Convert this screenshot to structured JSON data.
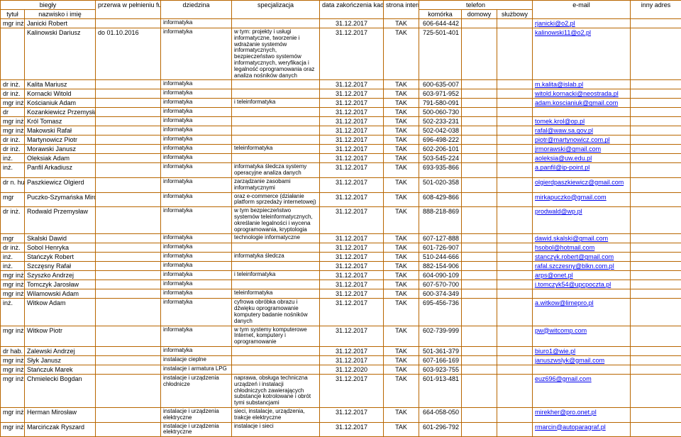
{
  "headers": {
    "biegly": "biegły",
    "przerwa": "przerwa w pełnieniu funkcji",
    "dziedzina": "dziedzina",
    "specjalizacja": "specjalizacja",
    "data": "data zakończenia kadencji",
    "strona": "strona internetowa",
    "telefon": "telefon",
    "email": "e-mail",
    "inny": "inny adres",
    "tytul": "tytuł",
    "nazwisko": "nazwisko i imię",
    "komorka": "komórka",
    "domowy": "domowy",
    "sluzbowy": "służbowy"
  },
  "rows": [
    {
      "t": "mgr inż.",
      "n": "Janicki Robert",
      "p": "",
      "d": "informatyka",
      "s": "",
      "dt": "31.12.2017",
      "si": "TAK",
      "k": "606-644-442",
      "dm": "",
      "sl": "",
      "e": "rjanicki@o2.pl",
      "i": ""
    },
    {
      "t": "",
      "n": "Kalinowski Dariusz",
      "p": "do 01.10.2016",
      "d": "informatyka",
      "s": "w tym: projekty i usługi informatyczne, tworzenie\ni wdrażanie systemów informatycznych, bezpieczeństwo systemów informatycznych, weryfikacja i legalność oprogramowania oraz analiza nośników danych",
      "dt": "31.12.2017",
      "si": "TAK",
      "k": "725-501-401",
      "dm": "",
      "sl": "",
      "e": "kalinowski11@o2.pl",
      "i": ""
    },
    {
      "t": "dr inż.",
      "n": "Kalita Mariusz",
      "p": "",
      "d": "informatyka",
      "s": "",
      "dt": "31.12.2017",
      "si": "TAK",
      "k": "600-635-007",
      "dm": "",
      "sl": "",
      "e": "m.kalita@islab.pl",
      "i": ""
    },
    {
      "t": "dr inż.",
      "n": "Kornacki Witold",
      "p": "",
      "d": "informatyka",
      "s": "",
      "dt": "31.12.2017",
      "si": "TAK",
      "k": "603-971-952",
      "dm": "",
      "sl": "",
      "e": "witold.kornacki@neostrada.pl",
      "i": ""
    },
    {
      "t": "mgr inż.",
      "n": "Kościaniuk Adam",
      "p": "",
      "d": "informatyka",
      "s": "i teleinformatyka",
      "dt": "31.12.2017",
      "si": "TAK",
      "k": "791-580-091",
      "dm": "",
      "sl": "",
      "e": "adam.koscianiuk@gmail.com",
      "i": ""
    },
    {
      "t": "dr",
      "n": "Kozankiewicz Przemysław",
      "p": "",
      "d": "informatyka",
      "s": "",
      "dt": "31.12.2017",
      "si": "TAK",
      "k": "500-060-730",
      "dm": "",
      "sl": "",
      "e": "",
      "i": ""
    },
    {
      "t": "mgr inż.",
      "n": "Król Tomasz",
      "p": "",
      "d": "informatyka",
      "s": "",
      "dt": "31.12.2017",
      "si": "TAK",
      "k": "502-233-231",
      "dm": "",
      "sl": "",
      "e": "tomek.krol@op.pl",
      "i": ""
    },
    {
      "t": "mgr inż.",
      "n": "Makowski Rafał",
      "p": "",
      "d": "informatyka",
      "s": "",
      "dt": "31.12.2017",
      "si": "TAK",
      "k": "502-042-038",
      "dm": "",
      "sl": "",
      "e": "rafal@waw.sa.gov.pl",
      "i": ""
    },
    {
      "t": "dr inż.",
      "n": "Martynowicz Piotr",
      "p": "",
      "d": "informatyka",
      "s": "",
      "dt": "31.12.2017",
      "si": "TAK",
      "k": "696-498-222",
      "dm": "",
      "sl": "",
      "e": "piotr@martynowicz.com.pl",
      "i": ""
    },
    {
      "t": "dr inż.",
      "n": "Morawski Janusz",
      "p": "",
      "d": "informatyka",
      "s": "teleinformatyka",
      "dt": "31.12.2017",
      "si": "TAK",
      "k": "602-206-101",
      "dm": "",
      "sl": "",
      "e": "jrmorawski@gmail.com",
      "i": ""
    },
    {
      "t": "inż.",
      "n": "Oleksiak Adam",
      "p": "",
      "d": "informatyka",
      "s": "",
      "dt": "31.12.2017",
      "si": "TAK",
      "k": "503-545-224",
      "dm": "",
      "sl": "",
      "e": "aoleksia@uw.edu.pl",
      "i": ""
    },
    {
      "t": "inż.",
      "n": "Panfil Arkadiusz",
      "p": "",
      "d": "informatyka",
      "s": "informatyka śledcza\nsystemy operacyjne\nanaliza danych",
      "dt": "31.12.2017",
      "si": "TAK",
      "k": "693-935-866",
      "dm": "",
      "sl": "",
      "e": "a.panfil@ip-point.pl",
      "i": ""
    },
    {
      "t": "dr n. hum.",
      "n": "Paszkiewicz Olgierd",
      "p": "",
      "d": "informatyka",
      "s": "zarządzanie zasobami informatycznymi",
      "dt": "31.12.2017",
      "si": "TAK",
      "k": "501-020-358",
      "dm": "",
      "sl": "",
      "e": "olgierdpaszkiewicz@gmail.com",
      "i": ""
    },
    {
      "t": "mgr",
      "n": "Puczko-Szymańska Mirosława",
      "p": "",
      "d": "informatyka",
      "s": "oraz e-commerce (działanie platform sprzedaży internetowej)",
      "dt": "31.12.2017",
      "si": "TAK",
      "k": "608-429-866",
      "dm": "",
      "sl": "",
      "e": "mirkapuczko@gmail.com",
      "i": ""
    },
    {
      "t": "dr inż.",
      "n": "Rodwald Przemysław",
      "p": "",
      "d": "informatyka",
      "s": "w tym bezpieczeństwo systemów teleinformatycznych, określanie legalności i wycena oprogramowania, kryptologia",
      "dt": "31.12.2017",
      "si": "TAK",
      "k": "888-218-869",
      "dm": "",
      "sl": "",
      "e": "prodwald@wp.pl",
      "i": ""
    },
    {
      "t": "mgr",
      "n": "Skalski Dawid",
      "p": "",
      "d": "informatyka",
      "s": "technologie informatyczne",
      "dt": "31.12.2017",
      "si": "TAK",
      "k": "607-127-888",
      "dm": "",
      "sl": "",
      "e": "dawid.skalski@gmail.com",
      "i": ""
    },
    {
      "t": "dr inż.",
      "n": "Sobol Henryka",
      "p": "",
      "d": "informatyka",
      "s": "",
      "dt": "31.12.2017",
      "si": "TAK",
      "k": "601-726-907",
      "dm": "",
      "sl": "",
      "e": "hsobol@hotmail.com",
      "i": ""
    },
    {
      "t": "inż.",
      "n": "Stańczyk Robert",
      "p": "",
      "d": "informatyka",
      "s": "informatyka śledcza",
      "dt": "31.12.2017",
      "si": "TAK",
      "k": "510-244-666",
      "dm": "",
      "sl": "",
      "e": "stanczyk.robert@gmail.com",
      "i": ""
    },
    {
      "t": "inż.",
      "n": "Szczęsny Rafał",
      "p": "",
      "d": "informatyka",
      "s": "",
      "dt": "31.12.2017",
      "si": "TAK",
      "k": "882-154-906",
      "dm": "",
      "sl": "",
      "e": "rafal.szczesny@blkn.com.pl",
      "i": ""
    },
    {
      "t": "mgr inż.",
      "n": "Szyszko Andrzej",
      "p": "",
      "d": "informatyka",
      "s": "i teleinformatyka",
      "dt": "31.12.2017",
      "si": "TAK",
      "k": "604-090-109",
      "dm": "",
      "sl": "",
      "e": "arps@onet.pl",
      "i": ""
    },
    {
      "t": "mgr inż.",
      "n": "Tomczyk Jarosław",
      "p": "",
      "d": "informatyka",
      "s": "",
      "dt": "31.12.2017",
      "si": "TAK",
      "k": "607-570-700",
      "dm": "",
      "sl": "",
      "e": "j.tomczyk54@upcpoczta.pl",
      "i": ""
    },
    {
      "t": "mgr inż.",
      "n": "Wilamowski Adam",
      "p": "",
      "d": "informatyka",
      "s": "teleinformatyka",
      "dt": "31.12.2017",
      "si": "TAK",
      "k": "600-374-349",
      "dm": "",
      "sl": "",
      "e": "",
      "i": ""
    },
    {
      "t": "inż.",
      "n": "Witkow Adam",
      "p": "",
      "d": "informatyka",
      "s": "cyfrowa obróbka obrazu i dźwięku\noprogramowanie\nkomputery\nbadanie nośników danych",
      "dt": "31.12.2017",
      "si": "TAK",
      "k": "695-456-736",
      "dm": "",
      "sl": "",
      "e": "a.witkow@limepro.pl",
      "i": ""
    },
    {
      "t": "mgr inż.",
      "n": "Witkow Piotr",
      "p": "",
      "d": "informatyka",
      "s": "w tym  systemy komputerowe Internet, komputery i oprogramowanie",
      "dt": "31.12.2017",
      "si": "TAK",
      "k": "602-739-999",
      "dm": "",
      "sl": "",
      "e": "pw@witcomp.com",
      "i": ""
    },
    {
      "t": "dr hab. inż.",
      "n": "Zalewski Andrzej",
      "p": "",
      "d": "informatyka",
      "s": "",
      "dt": "31.12.2017",
      "si": "TAK",
      "k": "501-361-379",
      "dm": "",
      "sl": "",
      "e": "biuro1@wie.pl",
      "i": ""
    },
    {
      "t": "mgr inż.",
      "n": "Słyk Janusz",
      "p": "",
      "d": "instalacje cieplne",
      "s": "",
      "dt": "31.12.2017",
      "si": "TAK",
      "k": "607-166-169",
      "dm": "",
      "sl": "",
      "e": "januszwslyk@gmail.com",
      "i": ""
    },
    {
      "t": "mgr inż.",
      "n": "Stańczuk Marek",
      "p": "",
      "d": "instalacje i armatura LPG",
      "s": "",
      "dt": "31.12.2020",
      "si": "TAK",
      "k": "603-923-755",
      "dm": "",
      "sl": "",
      "e": "",
      "i": ""
    },
    {
      "t": "mgr inż.",
      "n": "Chmielecki Bogdan",
      "p": "",
      "d": "instalacje i urządzenia chłodnicze",
      "s": "naprawa, obsługa techniczna urządzeń i instalacji chłodniczych zawierających substancje kotrolowane i obrót tymi substancjami",
      "dt": "31.12.2017",
      "si": "TAK",
      "k": "601-913-481",
      "dm": "",
      "sl": "",
      "e": "euz696@gmail.com",
      "i": ""
    },
    {
      "t": "mgr inż.",
      "n": "Herman Mirosław",
      "p": "",
      "d": "instalacje i urządzenia elektryczne",
      "s": "sieci, instalacje, urządzenia, trakcje elektryczne",
      "dt": "31.12.2017",
      "si": "TAK",
      "k": "664-058-050",
      "dm": "",
      "sl": "",
      "e": "mirekher@pro.onet.pl",
      "i": ""
    },
    {
      "t": "mgr inż.",
      "n": "Marcińczak Ryszard",
      "p": "",
      "d": "instalacje i urządzenia elektryczne",
      "s": "instalacje i sieci",
      "dt": "31.12.2017",
      "si": "TAK",
      "k": "601-296-792",
      "dm": "",
      "sl": "",
      "e": "rmarcin@autoparagraf.pl",
      "i": ""
    }
  ]
}
